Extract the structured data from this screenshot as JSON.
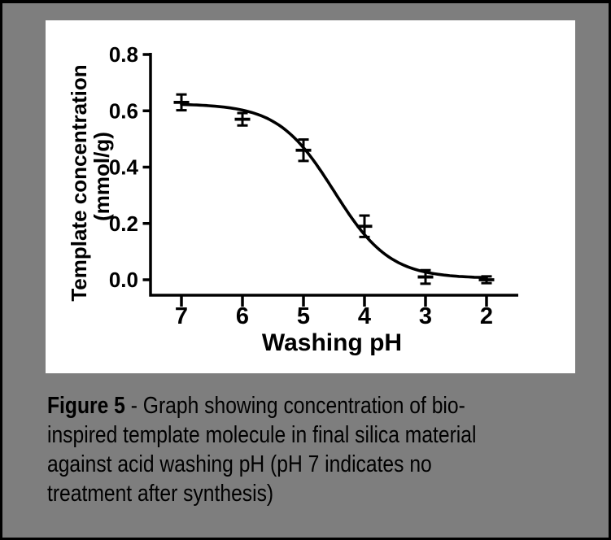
{
  "figure": {
    "background_color": "#7e7e7e",
    "frame_color": "#000000",
    "panel_color": "#ffffff"
  },
  "chart_data": {
    "type": "line",
    "title": "",
    "xlabel": "Washing pH",
    "ylabel_line1": "Template concentration",
    "ylabel_line2": "(mmol/g)",
    "x_ticks": [
      7,
      6,
      5,
      4,
      3,
      2
    ],
    "x_axis_direction": "reversed (pH 7 at left, pH 2 at right)",
    "y_tick_labels": [
      "0.0",
      "0.2",
      "0.4",
      "0.6",
      "0.8"
    ],
    "ylim": [
      0,
      0.8
    ],
    "grid": false,
    "legend": false,
    "line_color": "#000000",
    "series": [
      {
        "name": "template concentration vs washing pH",
        "marker": "horizontal-dash-with-error-bars",
        "x": [
          7,
          6,
          5,
          4,
          3,
          2
        ],
        "y": [
          0.63,
          0.57,
          0.46,
          0.19,
          0.01,
          0.0
        ],
        "y_err": [
          0.028,
          0.022,
          0.038,
          0.038,
          0.024,
          0.012
        ]
      }
    ],
    "fit_curve": {
      "shape": "sigmoidal dose-response fitted line",
      "top": 0.625,
      "bottom": 0.005,
      "midpoint_ph": 4.5,
      "hill": 0.95
    }
  },
  "caption": {
    "label": "Figure 5",
    "line1_rest": " - Graph showing concentration of bio-",
    "line2": "inspired template molecule in final silica material",
    "line3": "against acid washing pH (pH 7 indicates no",
    "line4": "treatment after synthesis)"
  }
}
